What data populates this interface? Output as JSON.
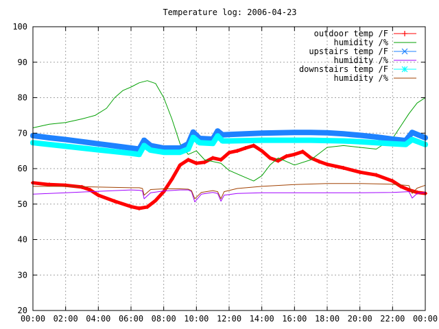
{
  "chart_data": {
    "type": "line",
    "title": "Temperature log: 2006-04-23",
    "xlabel": "",
    "ylabel": "",
    "xlim": [
      0,
      24
    ],
    "ylim": [
      20,
      100
    ],
    "yticks": [
      20,
      30,
      40,
      50,
      60,
      70,
      80,
      90,
      100
    ],
    "xticks": [
      0,
      2,
      4,
      6,
      8,
      10,
      12,
      14,
      16,
      18,
      20,
      22,
      24
    ],
    "xtick_labels": [
      "00:00",
      "02:00",
      "04:00",
      "06:00",
      "08:00",
      "10:00",
      "12:00",
      "14:00",
      "16:00",
      "18:00",
      "20:00",
      "22:00",
      "00:00"
    ],
    "grid": true,
    "legend_position": "top-right",
    "series": [
      {
        "name": "outdoor temp /F",
        "color": "#ff0000",
        "marker": "plus",
        "x": [
          0,
          1,
          2,
          3,
          3.5,
          4,
          5,
          6,
          6.5,
          7,
          7.5,
          8,
          8.5,
          9,
          9.5,
          10,
          10.5,
          11,
          11.5,
          12,
          12.5,
          13,
          13.5,
          14,
          14.5,
          15,
          15.5,
          16,
          16.5,
          17,
          17.5,
          18,
          19,
          20,
          21,
          22,
          22.5,
          23,
          23.5,
          24
        ],
        "y": [
          56,
          55.5,
          55.3,
          54.8,
          54,
          52.5,
          50.8,
          49.3,
          48.8,
          49.2,
          51,
          53.5,
          57,
          61,
          62.5,
          61.5,
          61.8,
          63,
          62.5,
          64.5,
          65,
          65.8,
          66.5,
          65,
          63,
          62.2,
          63.5,
          64,
          64.8,
          63,
          62,
          61.2,
          60.2,
          59,
          58.2,
          56.5,
          55,
          54,
          53.3,
          53
        ]
      },
      {
        "name": "humidity /%",
        "color": "#00a000",
        "marker": "none",
        "x": [
          0,
          1,
          2,
          3,
          3.8,
          4.5,
          5,
          5.5,
          6,
          6.5,
          7,
          7.5,
          8,
          8.5,
          9,
          9.5,
          10,
          10.5,
          11,
          11.5,
          12,
          12.5,
          13,
          13.5,
          14,
          14.5,
          15,
          15.5,
          16,
          17,
          18,
          19,
          20,
          21,
          22,
          22.5,
          23,
          23.5,
          24
        ],
        "y": [
          71.5,
          72.5,
          73,
          74,
          75,
          77,
          80,
          82,
          83,
          84.2,
          84.8,
          84,
          80,
          74,
          67,
          64,
          65,
          62.5,
          62,
          61.5,
          59.5,
          58.5,
          57.5,
          56.5,
          58,
          61,
          63,
          62,
          61,
          62.5,
          66,
          66.5,
          66,
          65.5,
          68.5,
          72,
          75.5,
          78.5,
          80
        ]
      },
      {
        "name": "upstairs temp /F",
        "color": "#1e82ff",
        "marker": "x",
        "x": [
          0,
          1,
          2,
          3,
          4,
          5,
          6,
          6.5,
          6.8,
          7.2,
          8,
          9,
          9.5,
          9.8,
          10.2,
          11,
          11.3,
          11.6,
          12,
          13,
          14,
          15,
          16,
          17,
          18,
          19,
          20,
          21,
          22,
          22.8,
          23.2,
          24
        ],
        "y": [
          69.3,
          68.7,
          68.2,
          67.6,
          67,
          66.4,
          65.8,
          65.5,
          68,
          66.5,
          65.8,
          65.8,
          67,
          70.3,
          68.5,
          68.3,
          70.6,
          69.5,
          69.6,
          69.8,
          70,
          70.1,
          70.2,
          70.2,
          70.1,
          69.8,
          69.4,
          68.9,
          68.3,
          67.9,
          70.2,
          68.7
        ]
      },
      {
        "name": "humidity /%",
        "color": "#a000ff",
        "marker": "none",
        "x": [
          0,
          2,
          4,
          6,
          6.5,
          6.7,
          6.8,
          7.2,
          8,
          9,
          9.5,
          9.7,
          9.9,
          10.3,
          11,
          11.3,
          11.5,
          11.7,
          12.5,
          14,
          16,
          18,
          20,
          22,
          23,
          23.2,
          23.5,
          24
        ],
        "y": [
          52.8,
          53.2,
          53.6,
          54,
          53.9,
          53.7,
          51.5,
          53.2,
          53.7,
          54,
          54,
          53.5,
          50.6,
          52.8,
          53.3,
          53,
          50.8,
          52.5,
          53,
          53.2,
          53.2,
          53.2,
          53.2,
          53.3,
          53.5,
          51.7,
          53,
          53.3
        ]
      },
      {
        "name": "downstairs temp /F",
        "color": "#00ffff",
        "marker": "star",
        "x": [
          0,
          1,
          2,
          3,
          4,
          5,
          6,
          6.5,
          6.8,
          7.2,
          8,
          9,
          9.5,
          9.8,
          10.2,
          11,
          11.3,
          11.6,
          12,
          13,
          14,
          15,
          16,
          17,
          18,
          19,
          20,
          21,
          22,
          22.8,
          23.2,
          24
        ],
        "y": [
          67.3,
          66.8,
          66.3,
          65.8,
          65.3,
          64.8,
          64.3,
          64,
          66.5,
          65.2,
          64.6,
          64.6,
          65.5,
          68.8,
          67.3,
          67.1,
          69.2,
          67.8,
          67.8,
          67.9,
          68,
          68,
          68,
          68,
          67.9,
          67.8,
          67.6,
          67.3,
          67,
          66.8,
          68.2,
          66.8
        ]
      },
      {
        "name": "humidity /%",
        "color": "#a04000",
        "marker": "none",
        "x": [
          0,
          2,
          4,
          6,
          6.5,
          6.7,
          6.8,
          7.2,
          8,
          9,
          9.5,
          9.7,
          9.9,
          10.3,
          11,
          11.3,
          11.5,
          11.7,
          12.5,
          14,
          16,
          18,
          20,
          22,
          23,
          23.2,
          23.5,
          24
        ],
        "y": [
          55,
          55,
          54.8,
          54.6,
          54.6,
          54.4,
          52.5,
          54.1,
          54.3,
          54.3,
          54.2,
          53.8,
          51.5,
          53.3,
          53.8,
          53.5,
          51.5,
          53.5,
          54.4,
          55,
          55.5,
          55.8,
          55.8,
          55.6,
          55.2,
          53,
          54.5,
          55.3
        ]
      }
    ]
  }
}
